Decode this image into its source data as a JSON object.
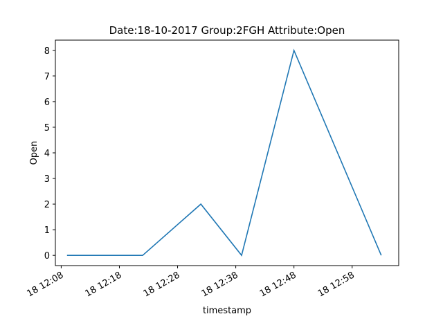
{
  "chart_data": {
    "type": "line",
    "title": "Date:18-10-2017  Group:2FGH Attribute:Open",
    "xlabel": "timestamp",
    "ylabel": "Open",
    "x_ticks": [
      "18 12:08",
      "18 12:18",
      "18 12:28",
      "18 12:38",
      "18 12:48",
      "18 12:58"
    ],
    "x_tick_minutes": [
      728,
      738,
      748,
      758,
      768,
      778
    ],
    "y_ticks": [
      0,
      1,
      2,
      3,
      4,
      5,
      6,
      7,
      8
    ],
    "xlim": [
      "18 12:07",
      "18 13:06"
    ],
    "ylim": [
      -0.4,
      8.4
    ],
    "grid": false,
    "series": [
      {
        "color": "#1f77b4",
        "x": [
          "18 12:09",
          "18 12:22",
          "18 12:32",
          "18 12:39",
          "18 12:48",
          "18 13:03"
        ],
        "values": [
          0,
          0,
          2,
          0,
          8,
          0
        ]
      }
    ]
  }
}
